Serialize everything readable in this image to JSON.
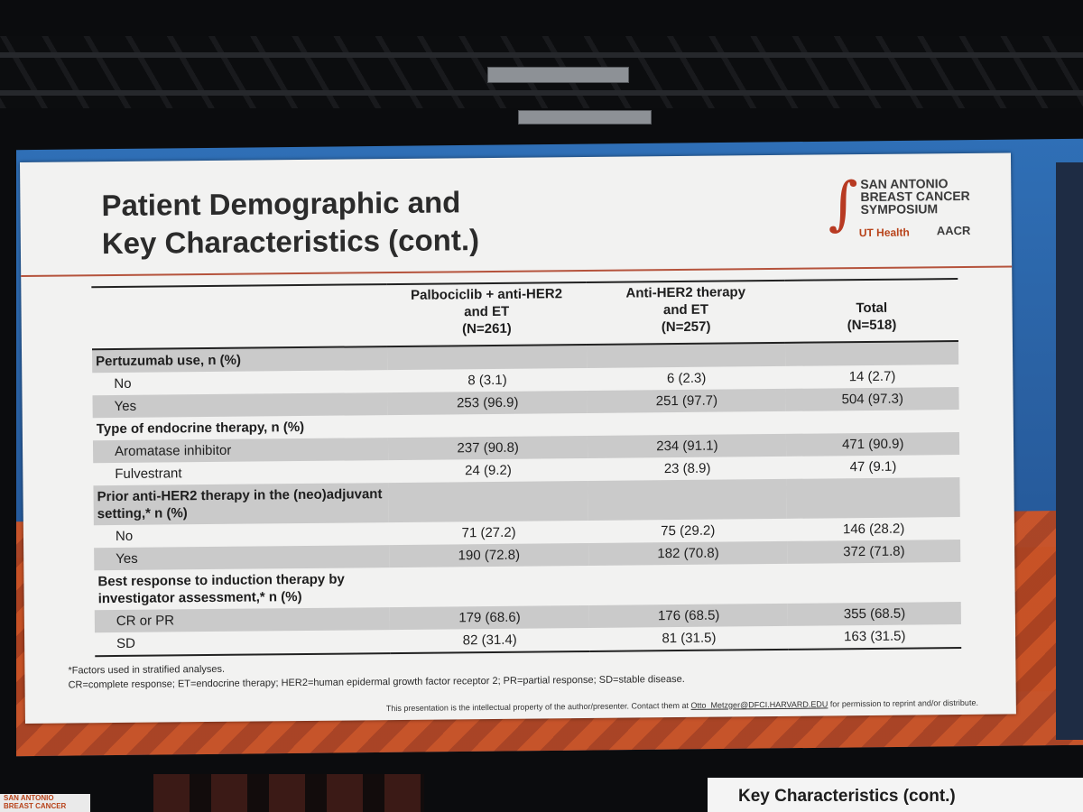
{
  "slide": {
    "title_line1": "Patient Demographic and",
    "title_line2": "Key Characteristics (cont.)",
    "logo": {
      "org_line1": "SAN ANTONIO",
      "org_line2": "BREAST CANCER",
      "org_line3": "SYMPOSIUM",
      "ut": "UT Health",
      "aacr": "AACR"
    },
    "table": {
      "headers": [
        "",
        "Palbociclib + anti-HER2 and ET (N=261)",
        "Anti-HER2 therapy and ET (N=257)",
        "Total (N=518)"
      ],
      "header_lines": [
        [],
        [
          "Palbociclib + anti-HER2",
          "and ET",
          "(N=261)"
        ],
        [
          "Anti-HER2 therapy",
          "and ET",
          "(N=257)"
        ],
        [
          "Total",
          "(N=518)"
        ]
      ],
      "rows": [
        {
          "label": "Pertuzumab use, n (%)",
          "section": true,
          "shade": true,
          "values": [
            "",
            "",
            ""
          ]
        },
        {
          "label": "No",
          "section": false,
          "shade": false,
          "values": [
            "8 (3.1)",
            "6 (2.3)",
            "14 (2.7)"
          ]
        },
        {
          "label": "Yes",
          "section": false,
          "shade": true,
          "values": [
            "253 (96.9)",
            "251 (97.7)",
            "504 (97.3)"
          ]
        },
        {
          "label": "Type of endocrine therapy, n (%)",
          "section": true,
          "shade": false,
          "values": [
            "",
            "",
            ""
          ]
        },
        {
          "label": "Aromatase inhibitor",
          "section": false,
          "shade": true,
          "values": [
            "237 (90.8)",
            "234 (91.1)",
            "471 (90.9)"
          ]
        },
        {
          "label": "Fulvestrant",
          "section": false,
          "shade": false,
          "values": [
            "24 (9.2)",
            "23 (8.9)",
            "47 (9.1)"
          ]
        },
        {
          "label": "Prior anti-HER2 therapy in the (neo)adjuvant setting,* n (%)",
          "section": true,
          "shade": true,
          "values": [
            "",
            "",
            ""
          ]
        },
        {
          "label": "No",
          "section": false,
          "shade": false,
          "values": [
            "71 (27.2)",
            "75 (29.2)",
            "146 (28.2)"
          ]
        },
        {
          "label": "Yes",
          "section": false,
          "shade": true,
          "values": [
            "190 (72.8)",
            "182 (70.8)",
            "372 (71.8)"
          ]
        },
        {
          "label": "Best response to induction therapy by investigator assessment,* n (%)",
          "section": true,
          "shade": false,
          "values": [
            "",
            "",
            ""
          ]
        },
        {
          "label": "CR or PR",
          "section": false,
          "shade": true,
          "values": [
            "179 (68.6)",
            "176 (68.5)",
            "355 (68.5)"
          ]
        },
        {
          "label": "SD",
          "section": false,
          "shade": false,
          "values": [
            "82 (31.4)",
            "81 (31.5)",
            "163 (31.5)"
          ]
        }
      ]
    },
    "footnote1": "*Factors used in stratified analyses.",
    "footnote2": "CR=complete response; ET=endocrine therapy; HER2=human epidermal growth factor receptor 2; PR=partial response; SD=stable disease.",
    "copyright_prefix": "This presentation is the intellectual property of the author/presenter. Contact them at ",
    "copyright_email": "Otto_Metzger@DFCI.HARVARD.EDU",
    "copyright_suffix": " for permission to reprint and/or distribute."
  },
  "next_screen_title": "Key Characteristics (cont.)",
  "corner_logo_line1": "SAN ANTONIO",
  "corner_logo_line2": "BREAST CANCER",
  "colors": {
    "accent_rule": "#b5533c",
    "screen_blue": "#2f6fb6",
    "screen_orange": "#d9541f",
    "row_shade": "#cacaca"
  }
}
